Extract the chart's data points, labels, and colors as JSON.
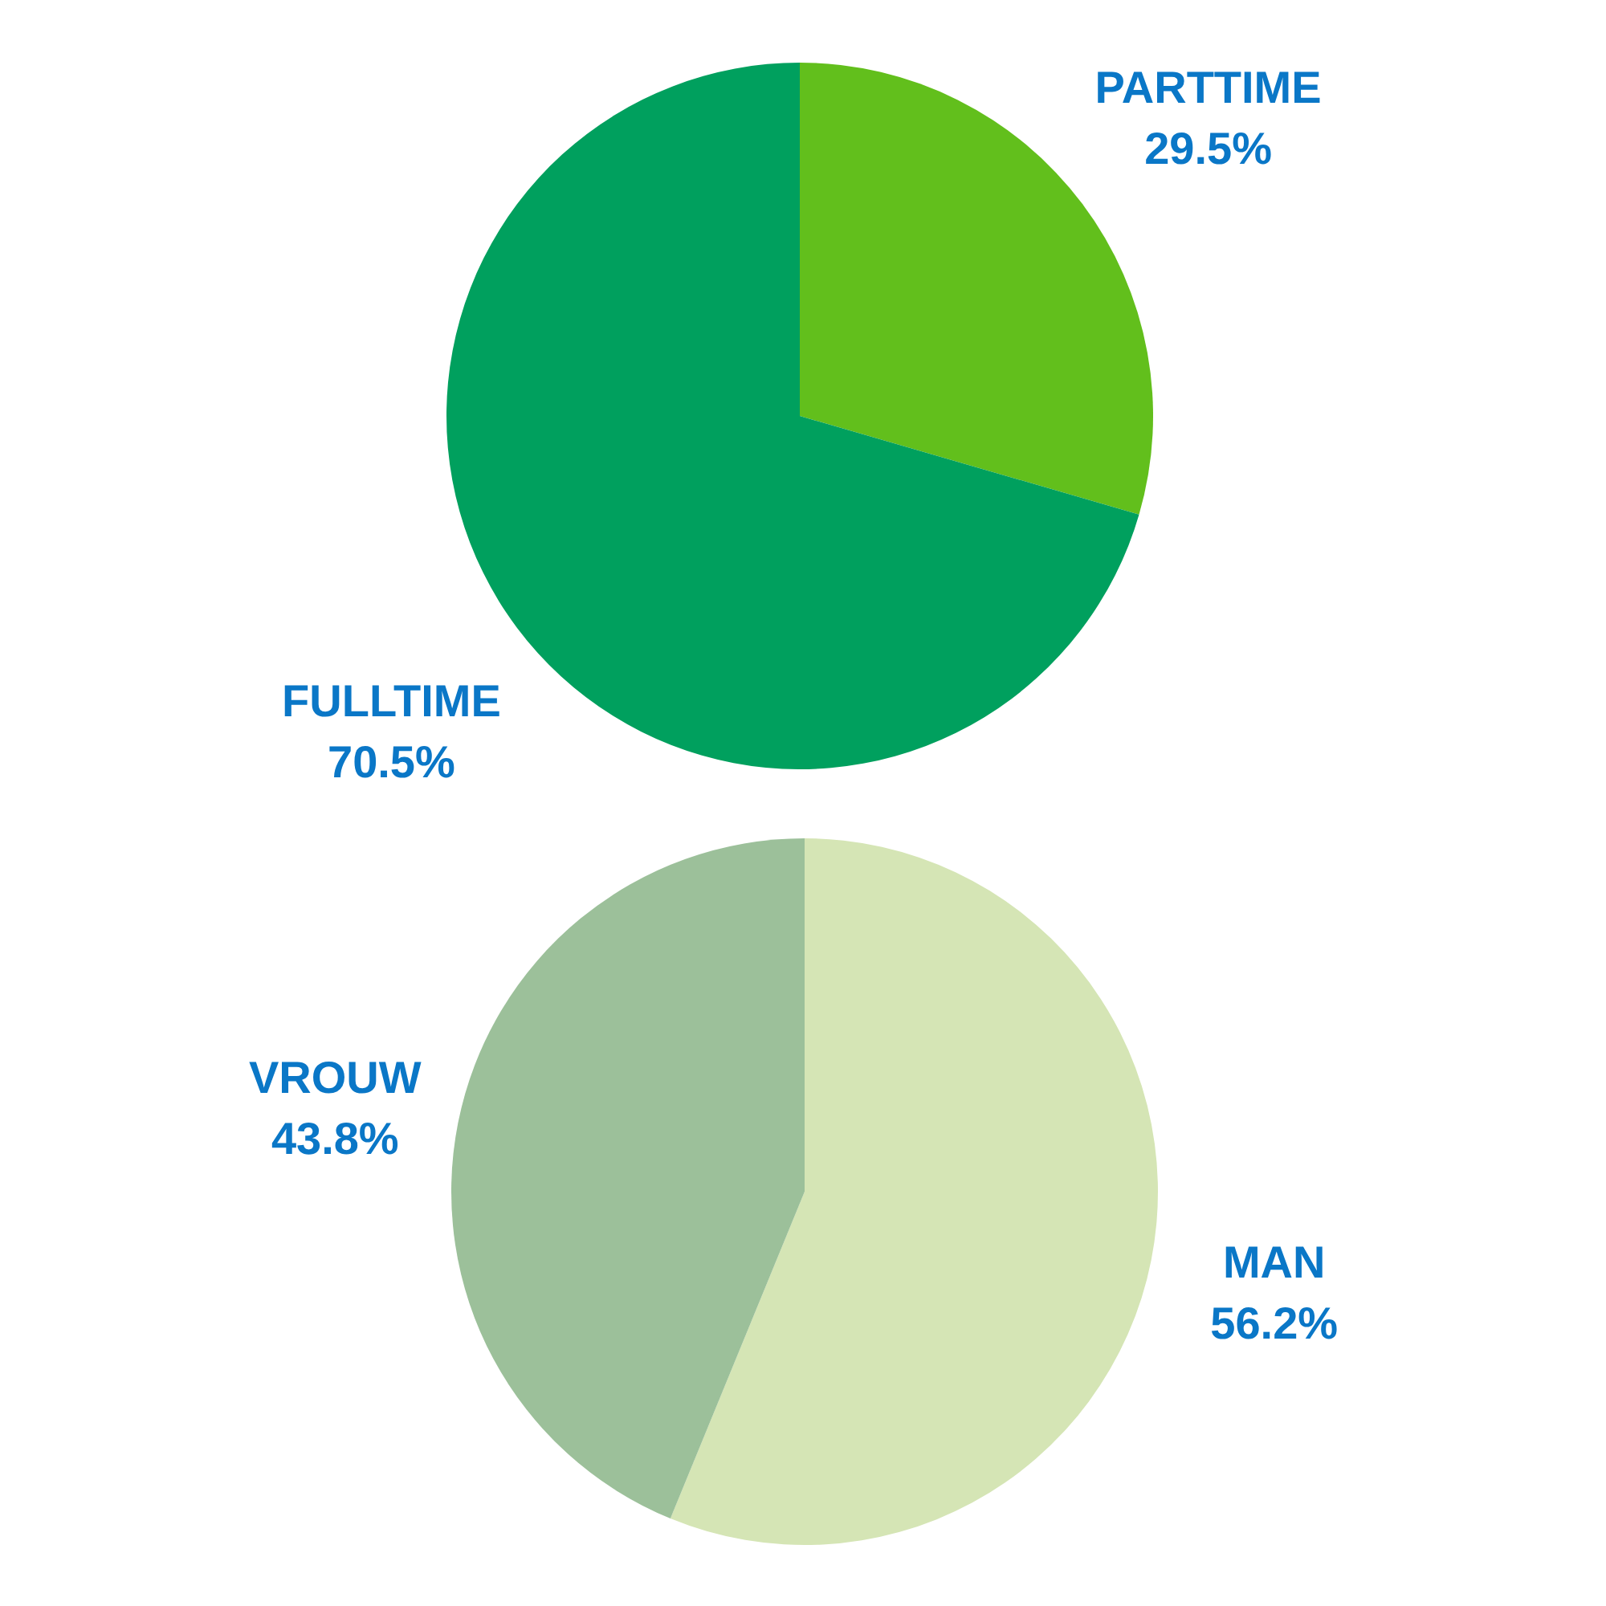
{
  "chart_data": [
    {
      "type": "pie",
      "categories": [
        "PARTTIME",
        "FULLTIME"
      ],
      "values": [
        29.5,
        70.5
      ],
      "colors": [
        "#62bf1c",
        "#00a05e"
      ],
      "value_labels": [
        "29.5%",
        "70.5%"
      ]
    },
    {
      "type": "pie",
      "categories": [
        "MAN",
        "VROUW"
      ],
      "values": [
        56.2,
        43.8
      ],
      "colors": [
        "#d5e5b5",
        "#9cc09a"
      ],
      "value_labels": [
        "56.2%",
        "43.8%"
      ]
    }
  ]
}
